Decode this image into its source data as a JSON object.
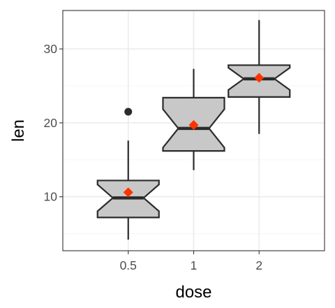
{
  "chart_data": {
    "type": "box",
    "title": "",
    "xlabel": "dose",
    "ylabel": "len",
    "categories": [
      "0.5",
      "1",
      "2"
    ],
    "ylim": [
      2.7,
      35.2
    ],
    "yticks": [
      10,
      20,
      30
    ],
    "grid": true,
    "notched": true,
    "boxes": [
      {
        "category": "0.5",
        "whisker_low": 4.2,
        "q1": 7.2,
        "median": 9.85,
        "q3": 12.2,
        "whisker_high": 17.6,
        "notch_low": 8.05,
        "notch_high": 11.65,
        "mean": 10.6,
        "outliers": [
          21.5
        ]
      },
      {
        "category": "1",
        "whisker_low": 13.6,
        "q1": 16.2,
        "median": 19.25,
        "q3": 23.4,
        "whisker_high": 27.3,
        "notch_low": 16.65,
        "notch_high": 21.85,
        "mean": 19.7,
        "outliers": []
      },
      {
        "category": "2",
        "whisker_low": 18.5,
        "q1": 23.5,
        "median": 25.95,
        "q3": 27.8,
        "whisker_high": 33.9,
        "notch_low": 24.45,
        "notch_high": 27.45,
        "mean": 26.1,
        "outliers": []
      }
    ],
    "colors": {
      "box_fill": "#c8c8c8",
      "box_stroke": "#2b2b2b",
      "mean_marker": "#ff3300",
      "grid_major": "#ebebeb",
      "grid_minor": "#f5f5f5",
      "panel_border": "#333333",
      "tick_text": "#4d4d4d"
    },
    "mean_marker_shape": "diamond"
  }
}
